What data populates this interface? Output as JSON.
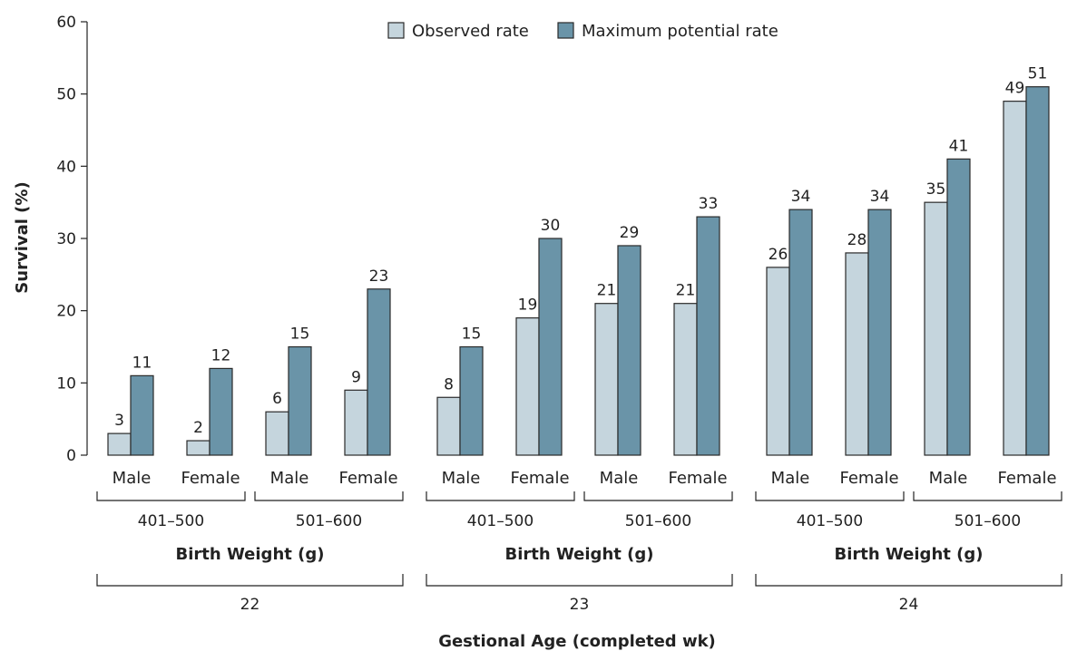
{
  "chart_data": {
    "type": "bar",
    "ylabel": "Survival (%)",
    "xlabel": "Gestional Age (completed wk)",
    "ylim": [
      0,
      60
    ],
    "yticks": [
      0,
      10,
      20,
      30,
      40,
      50,
      60
    ],
    "grid": false,
    "legend_position": "top-center",
    "series": [
      {
        "name": "Observed rate",
        "color": "#c5d5dd",
        "values": [
          3,
          2,
          6,
          9,
          8,
          19,
          21,
          21,
          26,
          28,
          35,
          49
        ]
      },
      {
        "name": "Maximum potential rate",
        "color": "#6a94a8",
        "values": [
          11,
          12,
          15,
          23,
          15,
          30,
          29,
          33,
          34,
          34,
          41,
          51
        ]
      }
    ],
    "categories": [
      "Male",
      "Female",
      "Male",
      "Female",
      "Male",
      "Female",
      "Male",
      "Female",
      "Male",
      "Female",
      "Male",
      "Female"
    ],
    "weight_groups": [
      "401–500",
      "501–600",
      "401–500",
      "501–600",
      "401–500",
      "501–600"
    ],
    "weight_group_title": "Birth Weight (g)",
    "age_groups": [
      "22",
      "23",
      "24"
    ]
  }
}
